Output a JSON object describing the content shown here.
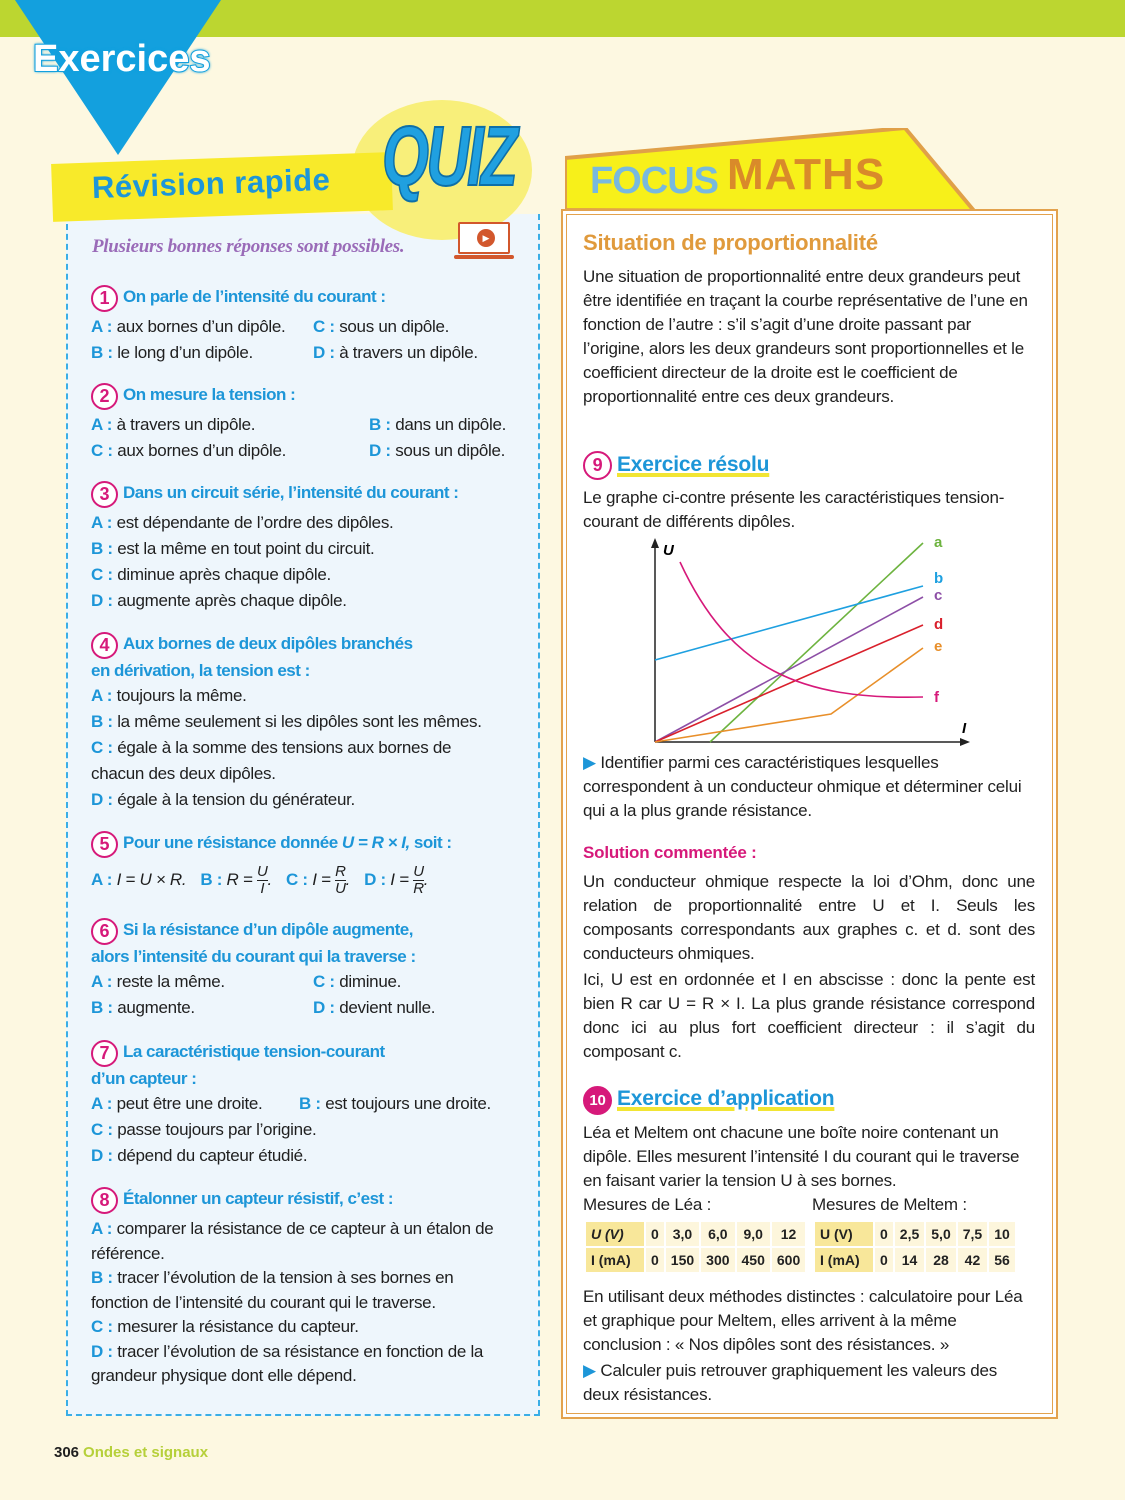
{
  "header": {
    "section": "Exercices"
  },
  "quiz": {
    "title": "Révision rapide",
    "badge": "QUIZ",
    "hint": "Plusieurs bonnes réponses sont possibles.",
    "questions": [
      {
        "num": "1",
        "text": "On parle de l’intensité du courant :",
        "answers": [
          {
            "l": "A :",
            "t": "aux bornes d’un dipôle."
          },
          {
            "l": "C :",
            "t": "sous un dipôle."
          },
          {
            "l": "B :",
            "t": "le long d’un dipôle."
          },
          {
            "l": "D :",
            "t": "à travers un dipôle."
          }
        ]
      },
      {
        "num": "2",
        "text": "On mesure la tension :",
        "answers": [
          {
            "l": "A :",
            "t": "à travers un dipôle."
          },
          {
            "l": "B :",
            "t": "dans un dipôle."
          },
          {
            "l": "C :",
            "t": "aux bornes d’un dipôle."
          },
          {
            "l": "D :",
            "t": "sous un dipôle."
          }
        ]
      },
      {
        "num": "3",
        "text": "Dans un circuit série, l’intensité du courant :",
        "answers": [
          {
            "l": "A :",
            "t": "est dépendante de l’ordre des dipôles."
          },
          {
            "l": "B :",
            "t": "est la même en tout point du circuit."
          },
          {
            "l": "C :",
            "t": "diminue après chaque dipôle."
          },
          {
            "l": "D :",
            "t": "augmente après chaque dipôle."
          }
        ]
      },
      {
        "num": "4",
        "text": "Aux bornes de deux dipôles branchés",
        "text2": "en dérivation, la tension est :",
        "answers": [
          {
            "l": "A :",
            "t": "toujours la même."
          },
          {
            "l": "B :",
            "t": "la même seulement si les dipôles sont les mêmes."
          },
          {
            "l": "C :",
            "t": "égale à la somme des tensions aux bornes de chacun des deux dipôles."
          },
          {
            "l": "D :",
            "t": "égale à la tension du générateur."
          }
        ]
      },
      {
        "num": "5",
        "text": "Pour une résistance donnée",
        "formula": "U = R × I,",
        "text2": "soit :",
        "answers": [
          {
            "l": "A :",
            "t": "I = U × R."
          },
          {
            "l": "B :",
            "t": "R =",
            "n": "U",
            "d": "I"
          },
          {
            "l": "C :",
            "t": "I =",
            "n": "R",
            "d": "U"
          },
          {
            "l": "D :",
            "t": "I =",
            "n": "U",
            "d": "R"
          }
        ]
      },
      {
        "num": "6",
        "text": "Si la résistance d’un dipôle augmente,",
        "text2": "alors l’intensité du courant qui la traverse :",
        "answers": [
          {
            "l": "A :",
            "t": "reste la même."
          },
          {
            "l": "C :",
            "t": "diminue."
          },
          {
            "l": "B :",
            "t": "augmente."
          },
          {
            "l": "D :",
            "t": "devient nulle."
          }
        ]
      },
      {
        "num": "7",
        "text": "La caractéristique tension-courant",
        "text2": "d’un capteur :",
        "answers": [
          {
            "l": "A :",
            "t": "peut être une droite."
          },
          {
            "l": "B :",
            "t": "est toujours une droite."
          },
          {
            "l": "C :",
            "t": "passe toujours par l’origine."
          },
          {
            "l": "D :",
            "t": "dépend du capteur étudié."
          }
        ]
      },
      {
        "num": "8",
        "text": "Étalonner un capteur résistif, c’est :",
        "answers": [
          {
            "l": "A :",
            "t": "comparer la résistance de ce capteur à un étalon de référence."
          },
          {
            "l": "B :",
            "t": "tracer l’évolution de la tension à ses bornes en fonction de l’intensité du courant qui le traverse."
          },
          {
            "l": "C :",
            "t": "mesurer la résistance du capteur."
          },
          {
            "l": "D :",
            "t": "tracer l’évolution de sa résistance en fonction de la grandeur physique dont elle dépend."
          }
        ]
      }
    ]
  },
  "focus": {
    "word1": "FOCUS",
    "word2": "MATHS",
    "title": "Situation de proportionnalité",
    "intro": "Une situation de proportionnalité entre deux grandeurs peut être identifiée en traçant la courbe représentative de l’une en fonction de l’autre : s’il s’agit d’une droite passant par l’origine, alors les deux grandeurs sont proportionnelles et le coefficient directeur de la droite est le coefficient de proportionnalité entre ces deux grandeurs.",
    "ex9": {
      "num": "9",
      "title": "Exercice résolu",
      "text": "Le graphe ci-contre présente les caractéristiques tension-courant de différents dipôles.",
      "graph": {
        "y_label": "U",
        "x_label": "I",
        "curves": [
          {
            "name": "a",
            "color": "#6db33f"
          },
          {
            "name": "b",
            "color": "#1ea0e0"
          },
          {
            "name": "c",
            "color": "#8d4fa6"
          },
          {
            "name": "d",
            "color": "#d9202c"
          },
          {
            "name": "e",
            "color": "#e88f2a"
          },
          {
            "name": "f",
            "color": "#d6197a"
          }
        ]
      },
      "task": "Identifier parmi ces caractéristiques lesquelles correspondent à un conducteur ohmique et déterminer celui qui a la plus grande résistance.",
      "solution_title": "Solution commentée :",
      "solution_p1": "Un conducteur ohmique respecte la loi d’Ohm, donc une relation de proportionnalité entre U et I. Seuls les composants correspondants aux graphes c. et d. sont des conducteurs ohmiques.",
      "solution_p2": "Ici, U est en ordonnée et I en abscisse : donc la pente est bien R car U = R × I. La plus grande résistance correspond donc ici au plus fort coefficient directeur : il s’agit du composant c."
    },
    "ex10": {
      "num": "10",
      "title": "Exercice d’application",
      "text": "Léa et Meltem ont chacune une boîte noire contenant un dipôle. Elles mesurent l’intensité I du courant qui le traverse en faisant varier la tension U à ses bornes.",
      "lea": {
        "caption": "Mesures de Léa :",
        "u_label": "U (V)",
        "i_label": "I (mA)",
        "u": [
          "0",
          "3,0",
          "6,0",
          "9,0",
          "12"
        ],
        "i": [
          "0",
          "150",
          "300",
          "450",
          "600"
        ]
      },
      "meltem": {
        "caption": "Mesures de Meltem :",
        "u_label": "U (V)",
        "i_label": "I (mA)",
        "u": [
          "0",
          "2,5",
          "5,0",
          "7,5",
          "10"
        ],
        "i": [
          "0",
          "14",
          "28",
          "42",
          "56"
        ]
      },
      "text2": "En utilisant deux méthodes distinctes : calculatoire pour Léa et graphique pour Meltem, elles arrivent à la même conclusion : « Nos dipôles sont des résistances. »",
      "task": "Calculer puis retrouver graphiquement les valeurs des deux résistances."
    }
  },
  "footer": {
    "page": "306",
    "section": "Ondes et signaux"
  },
  "colors": {
    "accent_blue": "#1d96d8",
    "magenta": "#d6197a",
    "green_bar": "#bcd630",
    "orange": "#e3a24d"
  }
}
